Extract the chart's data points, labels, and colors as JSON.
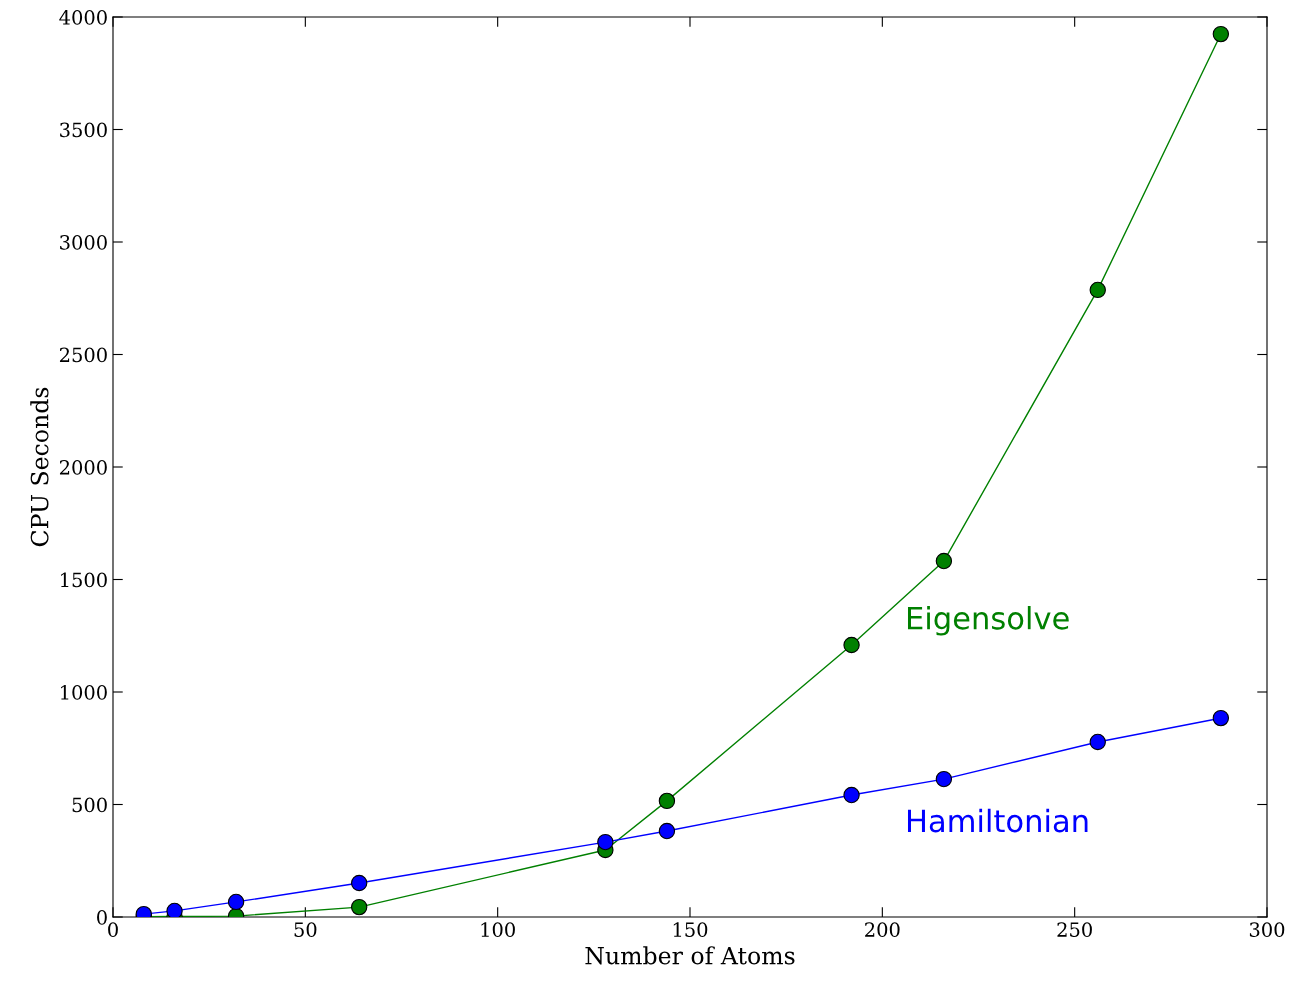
{
  "chart_data": {
    "type": "line",
    "xlabel": "Number of Atoms",
    "ylabel": "CPU Seconds",
    "x": [
      8,
      16,
      32,
      64,
      128,
      144,
      192,
      216,
      256,
      288
    ],
    "series": [
      {
        "name": "Hamiltonian",
        "color": "#0000ff",
        "values": [
          13,
          27,
          67,
          151,
          333,
          382,
          542,
          613,
          778,
          884
        ]
      },
      {
        "name": "Eigensolve",
        "color": "#008000",
        "values": [
          1,
          2,
          4,
          44,
          298,
          516,
          1209,
          1582,
          2787,
          3924
        ]
      }
    ],
    "xlim": [
      0,
      300
    ],
    "xticks": [
      0,
      50,
      100,
      150,
      200,
      250,
      300
    ],
    "ylim": [
      0,
      4000
    ],
    "yticks": [
      0,
      500,
      1000,
      1500,
      2000,
      2500,
      3000,
      3500,
      4000
    ],
    "marker": "circle",
    "line_style": "solid",
    "grid": false,
    "legend": false
  }
}
